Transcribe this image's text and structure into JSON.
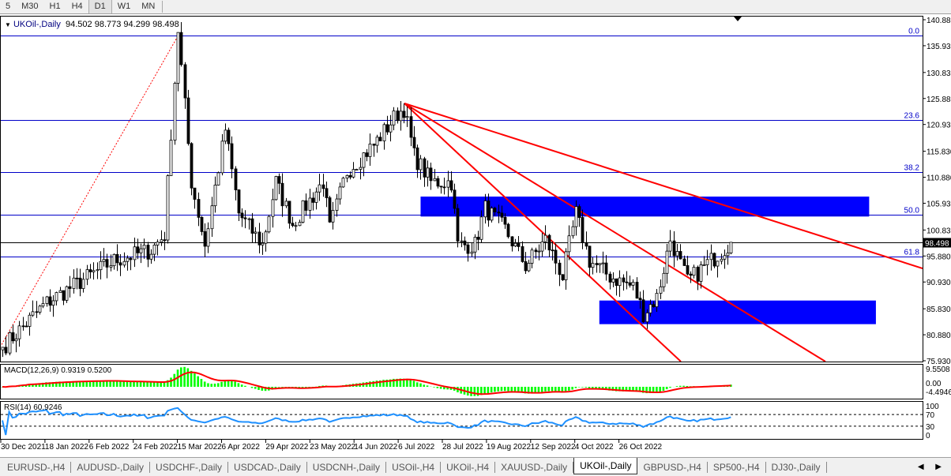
{
  "timeframes": [
    {
      "label": "5",
      "active": false
    },
    {
      "label": "M30",
      "active": false
    },
    {
      "label": "H1",
      "active": false
    },
    {
      "label": "H4",
      "active": false
    },
    {
      "label": "D1",
      "active": true
    },
    {
      "label": "W1",
      "active": false
    },
    {
      "label": "MN",
      "active": false
    }
  ],
  "chart": {
    "symbol_label": "UKOil-,Daily",
    "ohlc": "94.502 98.773 94.299 98.498",
    "current_price": "98.498",
    "price_ticks": [
      "140.880",
      "135.930",
      "130.830",
      "125.880",
      "120.930",
      "115.830",
      "110.880",
      "105.930",
      "100.830",
      "95.880",
      "90.930",
      "85.830",
      "80.880",
      "75.930"
    ],
    "price_range": [
      75.93,
      140.88
    ],
    "fib_levels": [
      {
        "label": "0.0",
        "price": 137.9
      },
      {
        "label": "23.6",
        "price": 121.8
      },
      {
        "label": "38.2",
        "price": 111.9
      },
      {
        "label": "50.0",
        "price": 103.8
      },
      {
        "label": "61.8",
        "price": 95.8
      }
    ],
    "zones": [
      {
        "from_bar": 124,
        "to_bar": 257,
        "high": 107.2,
        "low": 103.4
      },
      {
        "from_bar": 177,
        "to_bar": 259,
        "high": 87.4,
        "low": 82.9
      }
    ],
    "price_path": [
      [
        0,
        78.5
      ],
      [
        13,
        87
      ],
      [
        33,
        95
      ],
      [
        44,
        97
      ],
      [
        48,
        100
      ],
      [
        52,
        139
      ],
      [
        56,
        110
      ],
      [
        60,
        98
      ],
      [
        66,
        120
      ],
      [
        70,
        104
      ],
      [
        77,
        98
      ],
      [
        81,
        110
      ],
      [
        86,
        102
      ],
      [
        95,
        110
      ],
      [
        97,
        101
      ],
      [
        102,
        112
      ],
      [
        110,
        117
      ],
      [
        117,
        123
      ],
      [
        119,
        124
      ],
      [
        122,
        115
      ],
      [
        127,
        110
      ],
      [
        133,
        110
      ],
      [
        135,
        98
      ],
      [
        140,
        98
      ],
      [
        143,
        105
      ],
      [
        149,
        101
      ],
      [
        155,
        94
      ],
      [
        161,
        99
      ],
      [
        166,
        92
      ],
      [
        170,
        104
      ],
      [
        174,
        95
      ],
      [
        180,
        92
      ],
      [
        187,
        90
      ],
      [
        190,
        85
      ],
      [
        194,
        88
      ],
      [
        198,
        99
      ],
      [
        203,
        91
      ],
      [
        210,
        95
      ],
      [
        216,
        98.5
      ]
    ],
    "colors": {
      "fib": "#0000c8",
      "zone": "#0000ff",
      "trend": "#ff0000",
      "macd_hist": "#00ff00",
      "macd_signal": "#ff0000",
      "rsi": "#1e90ff"
    }
  },
  "macd": {
    "label": "MACD(12,26,9) 0.9319 0.5200",
    "ticks": [
      "9.5508",
      "0.00",
      "-4.4946"
    ]
  },
  "rsi": {
    "label": "RSI(14) 60.9246",
    "ticks": [
      "100",
      "70",
      "30",
      "0"
    ]
  },
  "dates": [
    "30 Dec 2021",
    "18 Jan 2022",
    "6 Feb 2022",
    "24 Feb 2022",
    "15 Mar 2022",
    "6 Apr 2022",
    "29 Apr 2022",
    "23 May 2022",
    "14 Jun 2022",
    "6 Jul 2022",
    "28 Jul 2022",
    "19 Aug 2022",
    "12 Sep 2022",
    "4 Oct 2022",
    "26 Oct 2022"
  ],
  "tabs": [
    {
      "label": "EURUSD-,H4"
    },
    {
      "label": "AUDUSD-,Daily"
    },
    {
      "label": "USDCHF-,Daily"
    },
    {
      "label": "USDCAD-,Daily"
    },
    {
      "label": "USDCNH-,Daily"
    },
    {
      "label": "USOil-,H4"
    },
    {
      "label": "UKOil-,H4"
    },
    {
      "label": "XAUUSD-,Daily"
    },
    {
      "label": "UKOil-,Daily",
      "active": true
    },
    {
      "label": "GBPUSD-,H4"
    },
    {
      "label": "SP500-,H4"
    },
    {
      "label": "DJ30-,Daily"
    }
  ],
  "tab_arrows": "◀ ▶"
}
